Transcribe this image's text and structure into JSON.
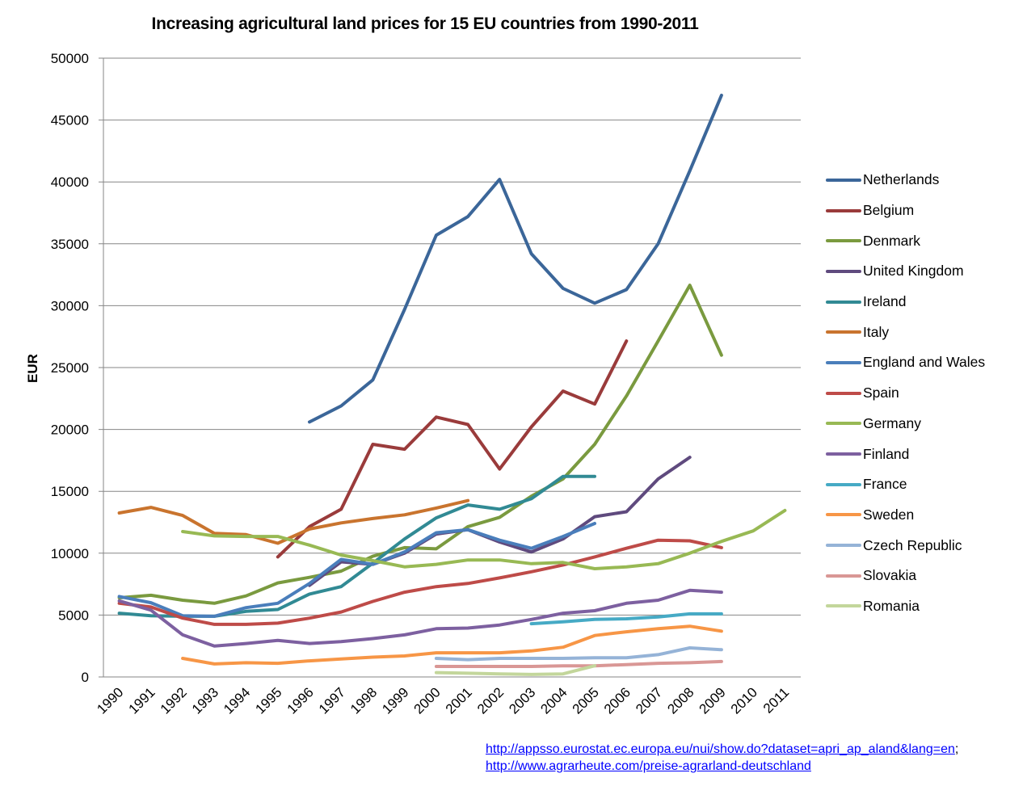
{
  "chart_data": {
    "type": "line",
    "title": "Increasing agricultural land prices for 15 EU countries from 1990-2011",
    "xlabel": "",
    "ylabel": "EUR",
    "ylim": [
      0,
      50000
    ],
    "yticks": [
      0,
      5000,
      10000,
      15000,
      20000,
      25000,
      30000,
      35000,
      40000,
      45000,
      50000
    ],
    "x": [
      "1990",
      "1991",
      "1992",
      "1993",
      "1994",
      "1995",
      "1996",
      "1997",
      "1998",
      "1999",
      "2000",
      "2001",
      "2002",
      "2003",
      "2004",
      "2005",
      "2006",
      "2007",
      "2008",
      "2009",
      "2010",
      "2011"
    ],
    "grid": true,
    "legend_position": "right",
    "series": [
      {
        "name": "Netherlands",
        "color": "#3B6699",
        "values": [
          null,
          null,
          null,
          null,
          null,
          null,
          20600,
          21900,
          24000,
          29700,
          35700,
          37200,
          40200,
          34200,
          31400,
          30200,
          31300,
          35000,
          40900,
          47000,
          null,
          null
        ]
      },
      {
        "name": "Belgium",
        "color": "#9A3B3B",
        "values": [
          null,
          null,
          null,
          null,
          null,
          9700,
          12150,
          13550,
          18800,
          18400,
          21000,
          20400,
          16800,
          20200,
          23100,
          22050,
          27150,
          null,
          null,
          null,
          null,
          null
        ]
      },
      {
        "name": "Denmark",
        "color": "#7A9A3F",
        "values": [
          6400,
          6600,
          6200,
          5950,
          6550,
          7600,
          8050,
          8550,
          9750,
          10450,
          10350,
          12150,
          12900,
          14600,
          16000,
          18800,
          22700,
          27150,
          31650,
          26000,
          null,
          null
        ]
      },
      {
        "name": "United Kingdom",
        "color": "#5F4A7E",
        "values": [
          null,
          null,
          null,
          null,
          null,
          null,
          7400,
          9300,
          9100,
          10000,
          11550,
          11900,
          10900,
          10100,
          11150,
          12950,
          13350,
          16000,
          17750,
          null,
          null,
          null
        ]
      },
      {
        "name": "Ireland",
        "color": "#318A94",
        "values": [
          5150,
          4950,
          4900,
          4900,
          5300,
          5450,
          6700,
          7300,
          9200,
          11150,
          12850,
          13900,
          13550,
          14400,
          16200,
          16200,
          null,
          null,
          null,
          null,
          null,
          null
        ]
      },
      {
        "name": "Italy",
        "color": "#C9742E",
        "values": [
          13250,
          13700,
          13050,
          11600,
          11500,
          10800,
          11950,
          12450,
          12800,
          13100,
          13650,
          14250,
          null,
          null,
          null,
          null,
          null,
          null,
          null,
          null,
          null,
          null
        ]
      },
      {
        "name": "England and Wales",
        "color": "#4A7EBB",
        "values": [
          6500,
          6000,
          4950,
          4900,
          5600,
          5950,
          7550,
          9500,
          9100,
          10100,
          11650,
          11900,
          11050,
          10400,
          11350,
          12400,
          null,
          null,
          null,
          null,
          null,
          null
        ]
      },
      {
        "name": "Spain",
        "color": "#BE4B48",
        "values": [
          5950,
          5650,
          4750,
          4250,
          4250,
          4350,
          4750,
          5250,
          6100,
          6850,
          7300,
          7550,
          8000,
          8500,
          9050,
          9700,
          10400,
          11050,
          11000,
          10450,
          null,
          null
        ]
      },
      {
        "name": "Germany",
        "color": "#98B954",
        "values": [
          null,
          null,
          11750,
          11400,
          11350,
          11350,
          10650,
          9850,
          9400,
          8900,
          9100,
          9450,
          9450,
          9150,
          9250,
          8750,
          8900,
          9150,
          10000,
          10950,
          11800,
          13450
        ]
      },
      {
        "name": "Finland",
        "color": "#7D60A0",
        "values": [
          6150,
          5400,
          3400,
          2500,
          2700,
          2950,
          2700,
          2850,
          3100,
          3400,
          3900,
          3950,
          4200,
          4650,
          5150,
          5350,
          5950,
          6200,
          7000,
          6850,
          null,
          null
        ]
      },
      {
        "name": "France",
        "color": "#46AAC5",
        "values": [
          null,
          null,
          null,
          null,
          null,
          null,
          null,
          null,
          null,
          null,
          null,
          null,
          null,
          4300,
          4450,
          4650,
          4700,
          4850,
          5100,
          5100,
          null,
          null
        ]
      },
      {
        "name": "Sweden",
        "color": "#F79646",
        "values": [
          null,
          null,
          1500,
          1050,
          1150,
          1100,
          1300,
          1450,
          1600,
          1700,
          1950,
          1950,
          1950,
          2100,
          2400,
          3350,
          3650,
          3900,
          4100,
          3700,
          null,
          null
        ]
      },
      {
        "name": "Czech Republic",
        "color": "#95B3D7",
        "values": [
          null,
          null,
          null,
          null,
          null,
          null,
          null,
          null,
          null,
          null,
          1500,
          1400,
          1500,
          1500,
          1500,
          1550,
          1550,
          1800,
          2350,
          2200,
          null,
          null
        ]
      },
      {
        "name": "Slovakia",
        "color": "#D99795",
        "values": [
          null,
          null,
          null,
          null,
          null,
          null,
          null,
          null,
          null,
          null,
          850,
          850,
          850,
          850,
          900,
          900,
          1000,
          1100,
          1150,
          1250,
          null,
          null
        ]
      },
      {
        "name": "Romania",
        "color": "#C3D69B",
        "values": [
          null,
          null,
          null,
          null,
          null,
          null,
          null,
          null,
          null,
          null,
          350,
          300,
          250,
          200,
          250,
          900,
          null,
          null,
          null,
          null,
          null,
          null
        ]
      }
    ]
  },
  "sources": {
    "link1": "http://appsso.eurostat.ec.europa.eu/nui/show.do?dataset=apri_ap_aland&lang=en",
    "separator": ";",
    "link2": "http://www.agrarheute.com/preise-agrarland-deutschland"
  }
}
